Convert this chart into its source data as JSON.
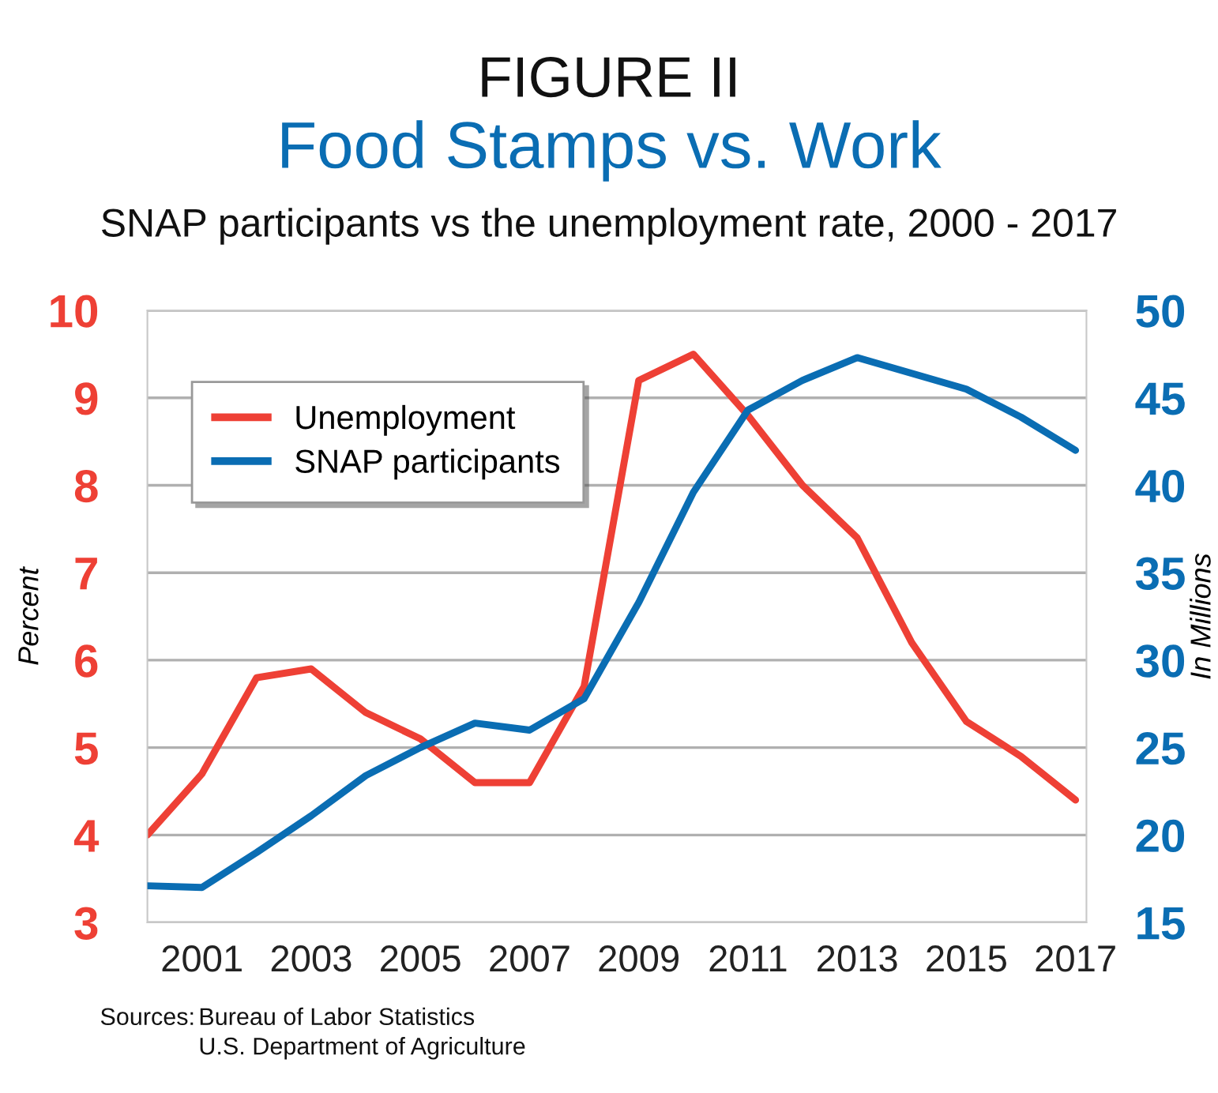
{
  "chart_data": {
    "type": "line",
    "title": "FIGURE II",
    "subtitle": "Food Stamps vs. Work",
    "ylabel": "Percent",
    "y2label": "In Millions",
    "annotations": [
      "SNAP participants vs the unemployment rate, 2000 - 2017",
      "Sources:",
      "Bureau of Labor Statistics",
      "U.S. Department of Agriculture"
    ],
    "x": [
      2000,
      2001,
      2002,
      2003,
      2004,
      2005,
      2006,
      2007,
      2008,
      2009,
      2010,
      2011,
      2012,
      2013,
      2014,
      2015,
      2016,
      2017
    ],
    "series": [
      {
        "name": "Unemployment",
        "color": "#ee4035",
        "values": [
          4.0,
          4.7,
          5.8,
          5.9,
          5.4,
          5.1,
          4.6,
          4.6,
          5.7,
          9.2,
          9.5,
          8.8,
          8.0,
          7.4,
          6.2,
          5.3,
          4.9,
          4.4
        ]
      },
      {
        "name": "SNAP participants",
        "color": "#0a6db3",
        "axis": "y2",
        "values": [
          17.1,
          17.0,
          19.0,
          21.1,
          23.4,
          25.0,
          26.4,
          26.0,
          27.8,
          33.3,
          39.6,
          44.3,
          46.0,
          47.3,
          46.4,
          45.5,
          43.9,
          42.0
        ]
      }
    ],
    "xlim": [
      2000,
      2017.2
    ],
    "xticks": [
      2001,
      2003,
      2005,
      2007,
      2009,
      2011,
      2013,
      2015,
      2017
    ],
    "ylim": [
      3,
      10
    ],
    "yticks": [
      3,
      4,
      5,
      6,
      7,
      8,
      9,
      10
    ],
    "y2lim": [
      15,
      50
    ],
    "y2ticks": [
      15,
      20,
      25,
      30,
      35,
      40,
      45,
      50
    ],
    "grid": "y",
    "legend": "top left",
    "marker": "none",
    "line_style": "solid"
  }
}
